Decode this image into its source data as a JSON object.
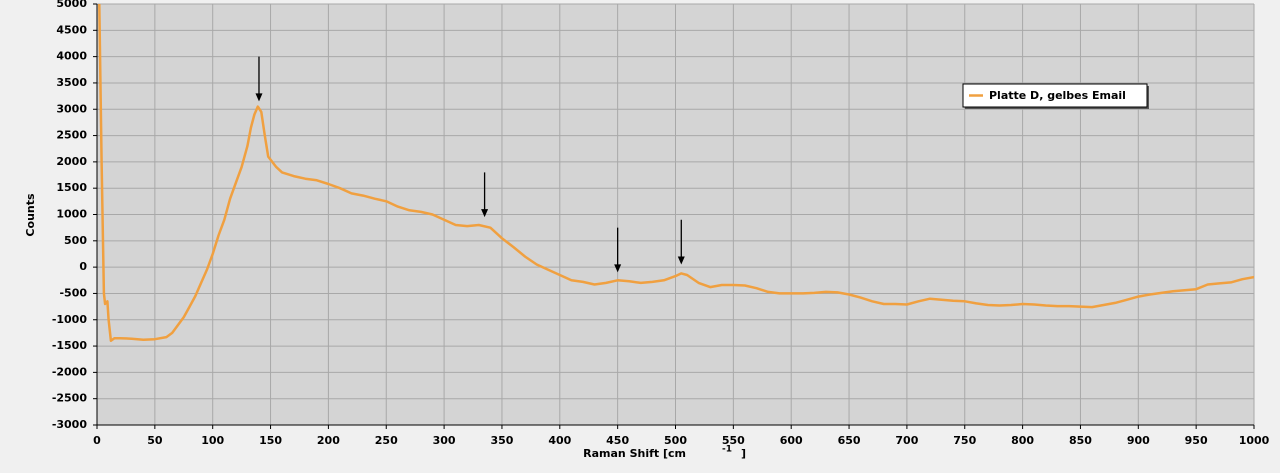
{
  "chart_data": {
    "type": "line",
    "y_label": "Counts",
    "x_label": "Raman Shift [cm",
    "x_label_sup": "-1",
    "x_label_end": "]",
    "xlim": [
      0,
      1000
    ],
    "ylim": [
      -3000,
      5000
    ],
    "xticks": [
      0,
      50,
      100,
      150,
      200,
      250,
      300,
      350,
      400,
      450,
      500,
      550,
      600,
      650,
      700,
      750,
      800,
      850,
      900,
      950,
      1000
    ],
    "yticks": [
      -3000,
      -2500,
      -2000,
      -1500,
      -1000,
      -500,
      0,
      500,
      1000,
      1500,
      2000,
      2500,
      3000,
      3500,
      4000,
      4500,
      5000
    ],
    "grid": true,
    "legend": "top-right",
    "arrows": [
      {
        "x": 140,
        "from": 4000,
        "to": 3150
      },
      {
        "x": 335,
        "from": 1800,
        "to": 950
      },
      {
        "x": 450,
        "from": 750,
        "to": -100
      },
      {
        "x": 505,
        "from": 900,
        "to": 50
      }
    ],
    "series": [
      {
        "name": "Platte D, gelbes Email",
        "color": "#f0a040",
        "x": [
          2,
          4,
          6,
          7,
          9,
          10,
          12,
          15,
          20,
          30,
          40,
          50,
          60,
          65,
          70,
          75,
          80,
          85,
          90,
          95,
          100,
          105,
          110,
          115,
          120,
          125,
          130,
          133,
          136,
          139,
          142,
          145,
          148,
          155,
          160,
          170,
          180,
          190,
          200,
          210,
          220,
          230,
          240,
          250,
          260,
          270,
          280,
          290,
          300,
          310,
          320,
          330,
          340,
          350,
          360,
          370,
          380,
          390,
          400,
          410,
          420,
          430,
          440,
          450,
          460,
          470,
          480,
          490,
          500,
          505,
          510,
          520,
          530,
          540,
          550,
          560,
          570,
          580,
          590,
          600,
          610,
          620,
          630,
          640,
          650,
          660,
          670,
          680,
          690,
          700,
          710,
          720,
          730,
          740,
          750,
          760,
          770,
          780,
          790,
          800,
          810,
          820,
          830,
          840,
          850,
          860,
          870,
          880,
          890,
          900,
          910,
          920,
          930,
          940,
          950,
          960,
          970,
          980,
          990,
          1000
        ],
        "values": [
          5000,
          2000,
          -500,
          -700,
          -650,
          -1000,
          -1400,
          -1350,
          -1350,
          -1360,
          -1380,
          -1370,
          -1330,
          -1250,
          -1100,
          -950,
          -750,
          -550,
          -300,
          -50,
          250,
          600,
          900,
          1300,
          1600,
          1900,
          2300,
          2650,
          2900,
          3050,
          2950,
          2500,
          2100,
          1900,
          1800,
          1730,
          1680,
          1650,
          1580,
          1500,
          1400,
          1360,
          1300,
          1250,
          1150,
          1080,
          1050,
          1000,
          900,
          800,
          780,
          800,
          750,
          550,
          380,
          200,
          50,
          -50,
          -150,
          -250,
          -280,
          -330,
          -300,
          -250,
          -270,
          -300,
          -280,
          -250,
          -170,
          -120,
          -150,
          -300,
          -380,
          -340,
          -340,
          -350,
          -400,
          -470,
          -500,
          -500,
          -500,
          -490,
          -470,
          -480,
          -520,
          -580,
          -650,
          -700,
          -700,
          -710,
          -650,
          -600,
          -620,
          -640,
          -650,
          -690,
          -720,
          -730,
          -720,
          -700,
          -710,
          -730,
          -740,
          -740,
          -750,
          -760,
          -720,
          -680,
          -620,
          -560,
          -520,
          -490,
          -460,
          -440,
          -420,
          -330,
          -310,
          -290,
          -230,
          -190
        ]
      }
    ]
  }
}
